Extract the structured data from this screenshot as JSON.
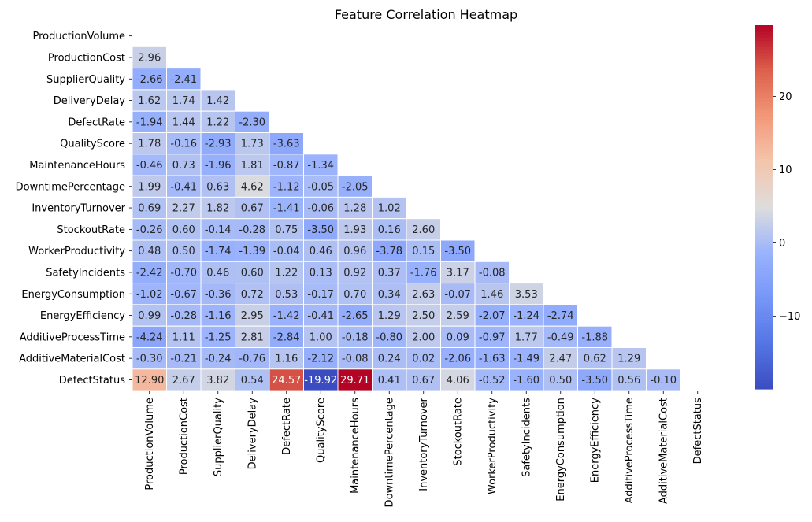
{
  "chart_data": {
    "type": "heatmap",
    "title": "Feature Correlation Heatmap",
    "mask": "upper-triangle-including-diagonal",
    "labels": [
      "ProductionVolume",
      "ProductionCost",
      "SupplierQuality",
      "DeliveryDelay",
      "DefectRate",
      "QualityScore",
      "MaintenanceHours",
      "DowntimePercentage",
      "InventoryTurnover",
      "StockoutRate",
      "WorkerProductivity",
      "SafetyIncidents",
      "EnergyConsumption",
      "EnergyEfficiency",
      "AdditiveProcessTime",
      "AdditiveMaterialCost",
      "DefectStatus"
    ],
    "rows": [
      [],
      [
        "2.96"
      ],
      [
        "-2.66",
        "-2.41"
      ],
      [
        "1.62",
        "1.74",
        "1.42"
      ],
      [
        "-1.94",
        "1.44",
        "1.22",
        "-2.30"
      ],
      [
        "1.78",
        "-0.16",
        "-2.93",
        "1.73",
        "-3.63"
      ],
      [
        "-0.46",
        "0.73",
        "-1.96",
        "1.81",
        "-0.87",
        "-1.34"
      ],
      [
        "1.99",
        "-0.41",
        "0.63",
        "4.62",
        "-1.12",
        "-0.05",
        "-2.05"
      ],
      [
        "0.69",
        "2.27",
        "1.82",
        "0.67",
        "-1.41",
        "-0.06",
        "1.28",
        "1.02"
      ],
      [
        "-0.26",
        "0.60",
        "-0.14",
        "-0.28",
        "0.75",
        "-3.50",
        "1.93",
        "0.16",
        "2.60"
      ],
      [
        "0.48",
        "0.50",
        "-1.74",
        "-1.39",
        "-0.04",
        "0.46",
        "0.96",
        "-3.78",
        "0.15",
        "-3.50"
      ],
      [
        "-2.42",
        "-0.70",
        "0.46",
        "0.60",
        "1.22",
        "0.13",
        "0.92",
        "0.37",
        "-1.76",
        "3.17",
        "-0.08"
      ],
      [
        "-1.02",
        "-0.67",
        "-0.36",
        "0.72",
        "0.53",
        "-0.17",
        "0.70",
        "0.34",
        "2.63",
        "-0.07",
        "1.46",
        "3.53"
      ],
      [
        "0.99",
        "-0.28",
        "-1.16",
        "2.95",
        "-1.42",
        "-0.41",
        "-2.65",
        "1.29",
        "2.50",
        "2.59",
        "-2.07",
        "-1.24",
        "-2.74"
      ],
      [
        "-4.24",
        "1.11",
        "-1.25",
        "2.81",
        "-2.84",
        "1.00",
        "-0.18",
        "-0.80",
        "2.00",
        "0.09",
        "-0.97",
        "1.77",
        "-0.49",
        "-1.88"
      ],
      [
        "-0.30",
        "-0.21",
        "-0.24",
        "-0.76",
        "1.16",
        "-2.12",
        "-0.08",
        "0.24",
        "0.02",
        "-2.06",
        "-1.63",
        "-1.49",
        "2.47",
        "0.62",
        "1.29"
      ],
      [
        "12.90",
        "2.67",
        "3.82",
        "0.54",
        "24.57",
        "-19.92",
        "29.71",
        "0.41",
        "0.67",
        "4.06",
        "-0.52",
        "-1.60",
        "0.50",
        "-3.50",
        "0.56",
        "-0.10"
      ]
    ],
    "colorbar": {
      "colormap": "coolwarm",
      "vmin": -19.92,
      "vmax": 29.71,
      "ticks": [
        -10,
        0,
        10,
        20
      ],
      "tick_labels": [
        "−10",
        "0",
        "10",
        "20"
      ]
    },
    "colors": {
      "cell_border": "#ffffff",
      "dark_text": "#262626",
      "light_text": "#ffffff"
    }
  }
}
